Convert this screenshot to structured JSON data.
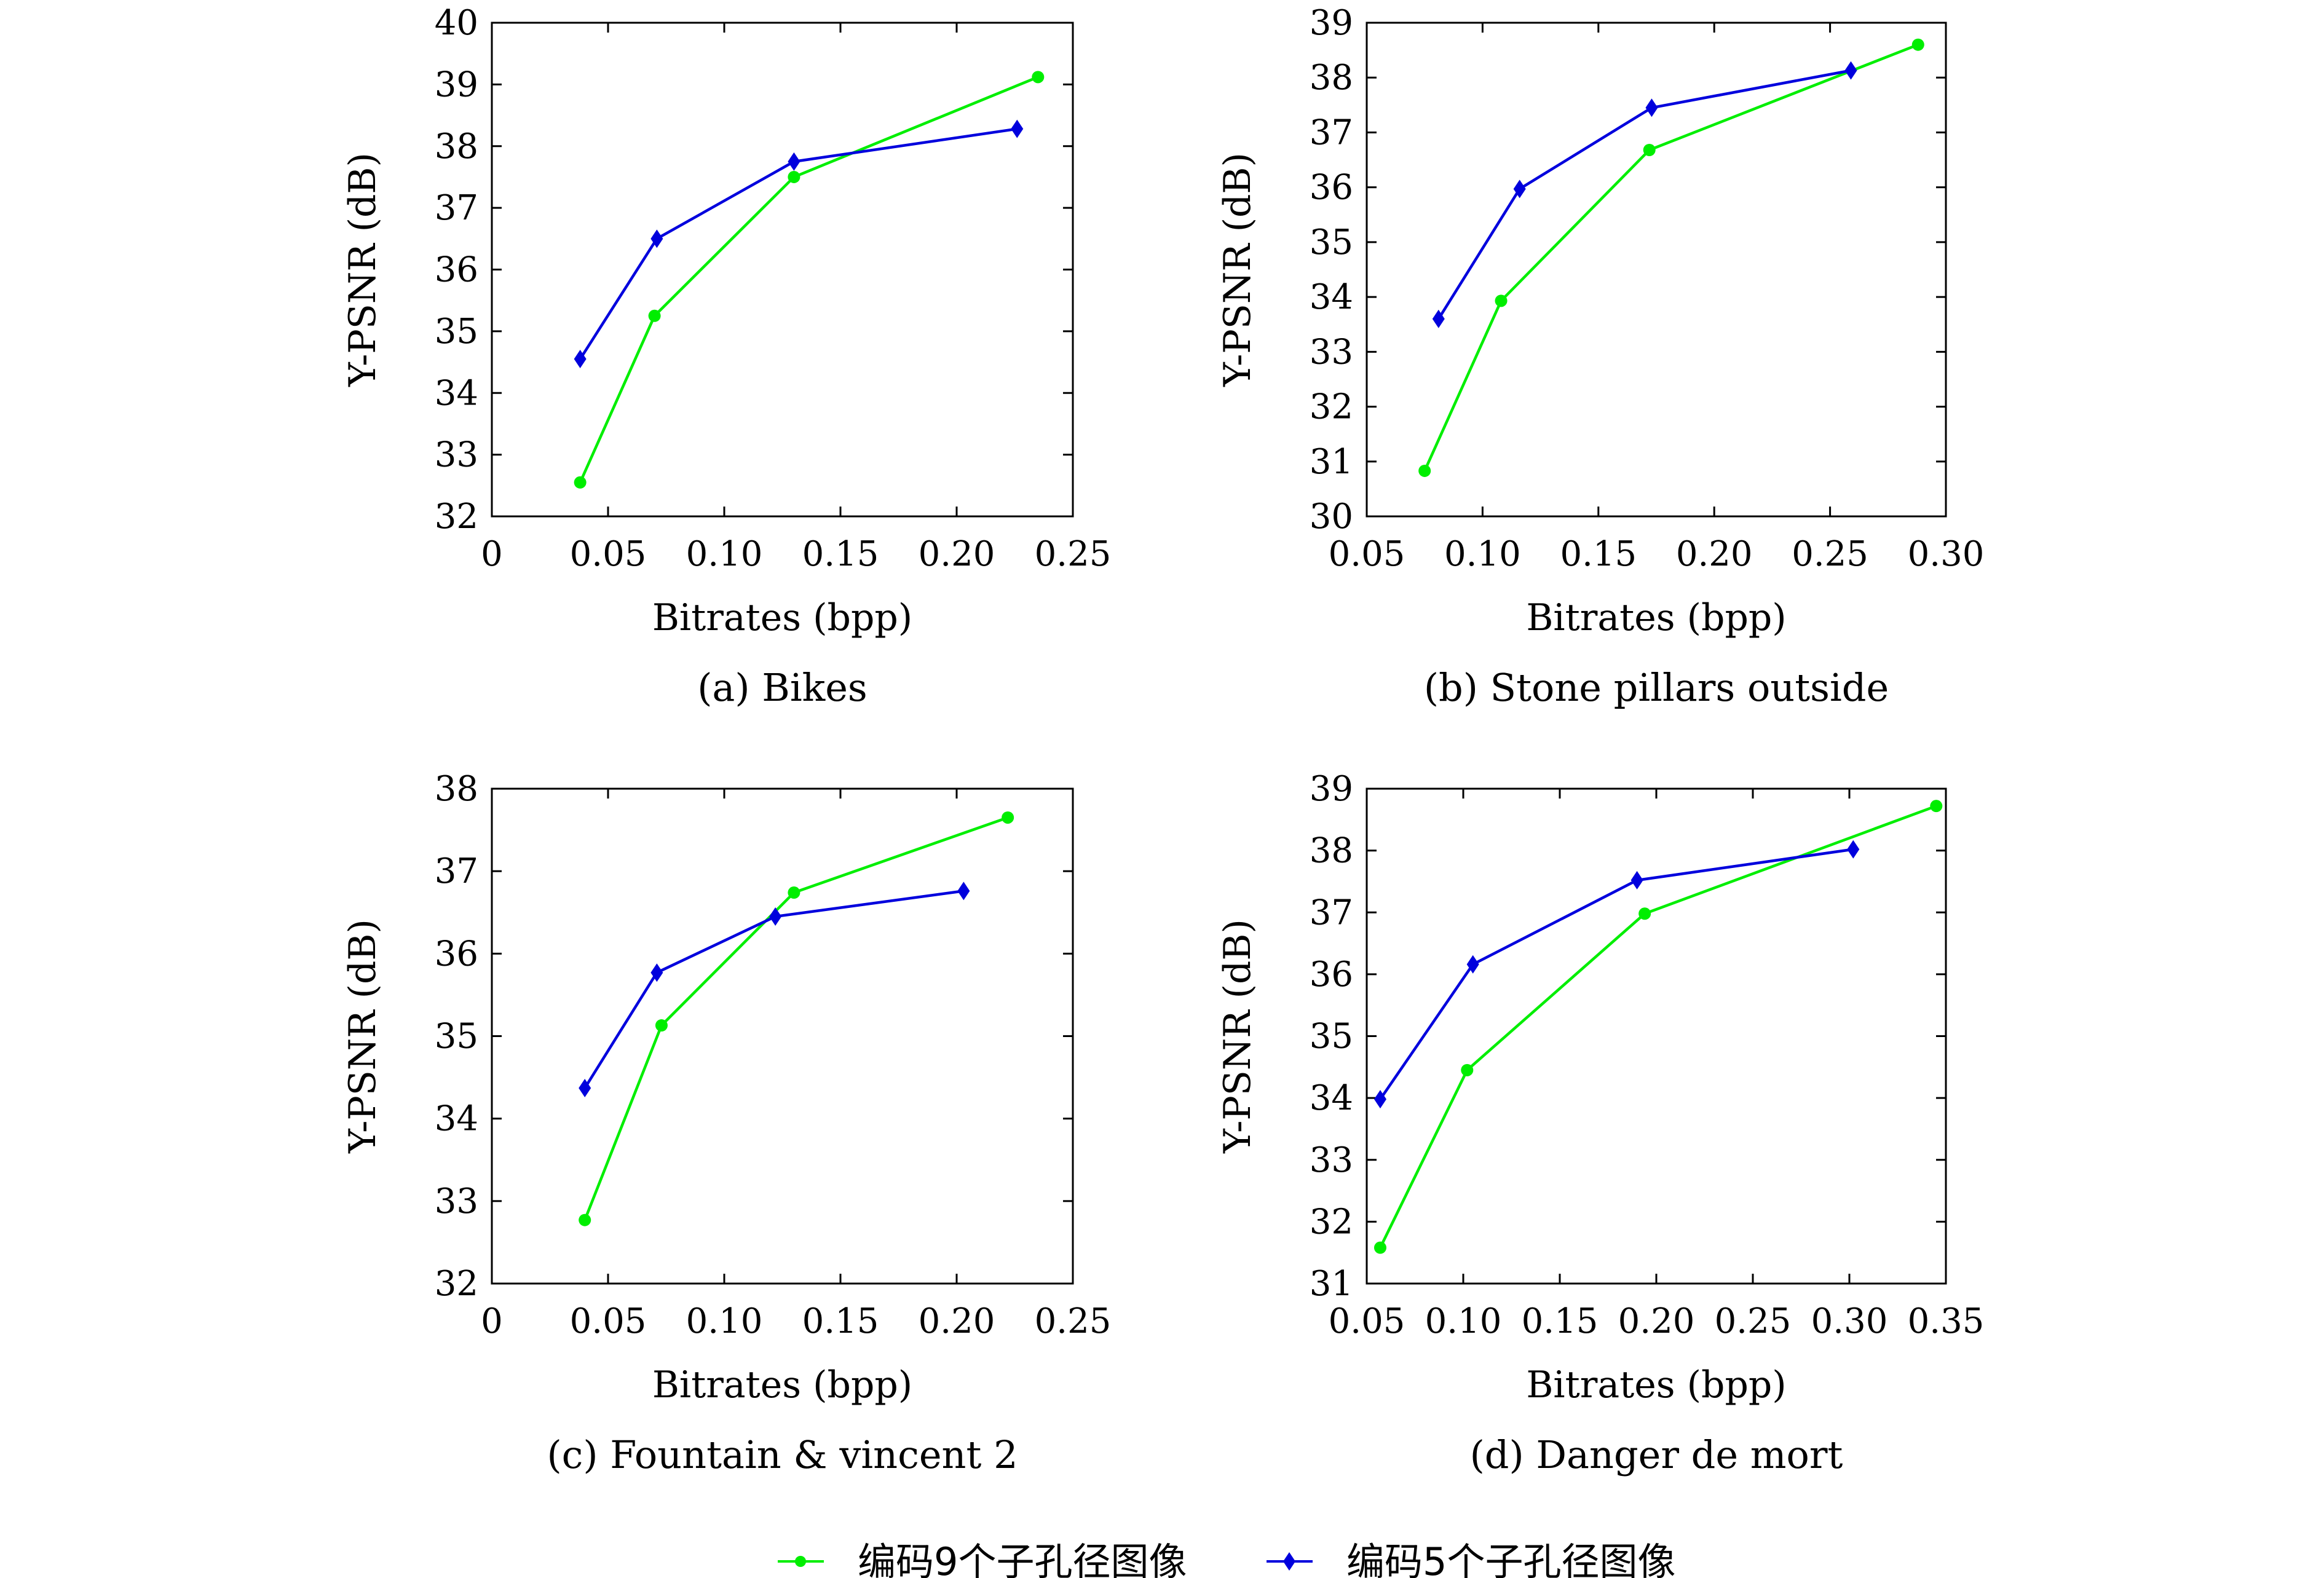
{
  "legend": [
    {
      "label": "编码9个子孔径图像",
      "color": "#00ee00",
      "marker": "circle"
    },
    {
      "label": "编码5个子孔径图像",
      "color": "#0000dd",
      "marker": "diamond"
    }
  ],
  "chart_data": [
    {
      "type": "line",
      "caption": "(a) Bikes",
      "xlabel": "Bitrates (bpp)",
      "ylabel": "Y-PSNR (dB)",
      "xlim": [
        0,
        0.25
      ],
      "ylim": [
        32,
        40
      ],
      "xticks": [
        "0",
        "0.05",
        "0.10",
        "0.15",
        "0.20",
        "0.25"
      ],
      "yticks": [
        "32",
        "33",
        "34",
        "35",
        "36",
        "37",
        "38",
        "39",
        "40"
      ],
      "series": [
        {
          "name": "编码9个子孔径图像",
          "color": "#00ee00",
          "marker": "circle",
          "x": [
            0.038,
            0.07,
            0.13,
            0.235
          ],
          "y": [
            32.55,
            35.25,
            37.5,
            39.12
          ]
        },
        {
          "name": "编码5个子孔径图像",
          "color": "#0000dd",
          "marker": "diamond",
          "x": [
            0.038,
            0.071,
            0.13,
            0.226
          ],
          "y": [
            34.55,
            36.5,
            37.75,
            38.28
          ]
        }
      ]
    },
    {
      "type": "line",
      "caption": "(b) Stone pillars outside",
      "xlabel": "Bitrates (bpp)",
      "ylabel": "Y-PSNR (dB)",
      "xlim": [
        0.05,
        0.3
      ],
      "ylim": [
        30,
        39
      ],
      "xticks": [
        "0.05",
        "0.10",
        "0.15",
        "0.20",
        "0.25",
        "0.30"
      ],
      "yticks": [
        "30",
        "31",
        "32",
        "33",
        "34",
        "35",
        "36",
        "37",
        "38",
        "39"
      ],
      "series": [
        {
          "name": "编码9个子孔径图像",
          "color": "#00ee00",
          "marker": "circle",
          "x": [
            0.075,
            0.108,
            0.172,
            0.288
          ],
          "y": [
            30.83,
            33.93,
            36.68,
            38.6
          ]
        },
        {
          "name": "编码5个子孔径图像",
          "color": "#0000dd",
          "marker": "diamond",
          "x": [
            0.081,
            0.116,
            0.173,
            0.259
          ],
          "y": [
            33.6,
            35.97,
            37.45,
            38.13
          ]
        }
      ]
    },
    {
      "type": "line",
      "caption": "(c) Fountain & vincent 2",
      "xlabel": "Bitrates (bpp)",
      "ylabel": "Y-PSNR (dB)",
      "xlim": [
        0,
        0.25
      ],
      "ylim": [
        32,
        38
      ],
      "xticks": [
        "0",
        "0.05",
        "0.10",
        "0.15",
        "0.20",
        "0.25"
      ],
      "yticks": [
        "32",
        "33",
        "34",
        "35",
        "36",
        "37",
        "38"
      ],
      "series": [
        {
          "name": "编码9个子孔径图像",
          "color": "#00ee00",
          "marker": "circle",
          "x": [
            0.04,
            0.073,
            0.13,
            0.222
          ],
          "y": [
            32.77,
            35.13,
            36.74,
            37.65
          ]
        },
        {
          "name": "编码5个子孔径图像",
          "color": "#0000dd",
          "marker": "diamond",
          "x": [
            0.04,
            0.071,
            0.122,
            0.203
          ],
          "y": [
            34.37,
            35.77,
            36.45,
            36.76
          ]
        }
      ]
    },
    {
      "type": "line",
      "caption": "(d) Danger de mort",
      "xlabel": "Bitrates (bpp)",
      "ylabel": "Y-PSNR (dB)",
      "xlim": [
        0.05,
        0.35
      ],
      "ylim": [
        31,
        39
      ],
      "xticks": [
        "0.05",
        "0.10",
        "0.15",
        "0.20",
        "0.25",
        "0.30",
        "0.35"
      ],
      "yticks": [
        "31",
        "32",
        "33",
        "34",
        "35",
        "36",
        "37",
        "38",
        "39"
      ],
      "series": [
        {
          "name": "编码9个子孔径图像",
          "color": "#00ee00",
          "marker": "circle",
          "x": [
            0.057,
            0.102,
            0.194,
            0.345
          ],
          "y": [
            31.58,
            34.45,
            36.98,
            38.72
          ]
        },
        {
          "name": "编码5个子孔径图像",
          "color": "#0000dd",
          "marker": "diamond",
          "x": [
            0.057,
            0.105,
            0.19,
            0.302
          ],
          "y": [
            33.98,
            36.16,
            37.52,
            38.02
          ]
        }
      ]
    }
  ]
}
